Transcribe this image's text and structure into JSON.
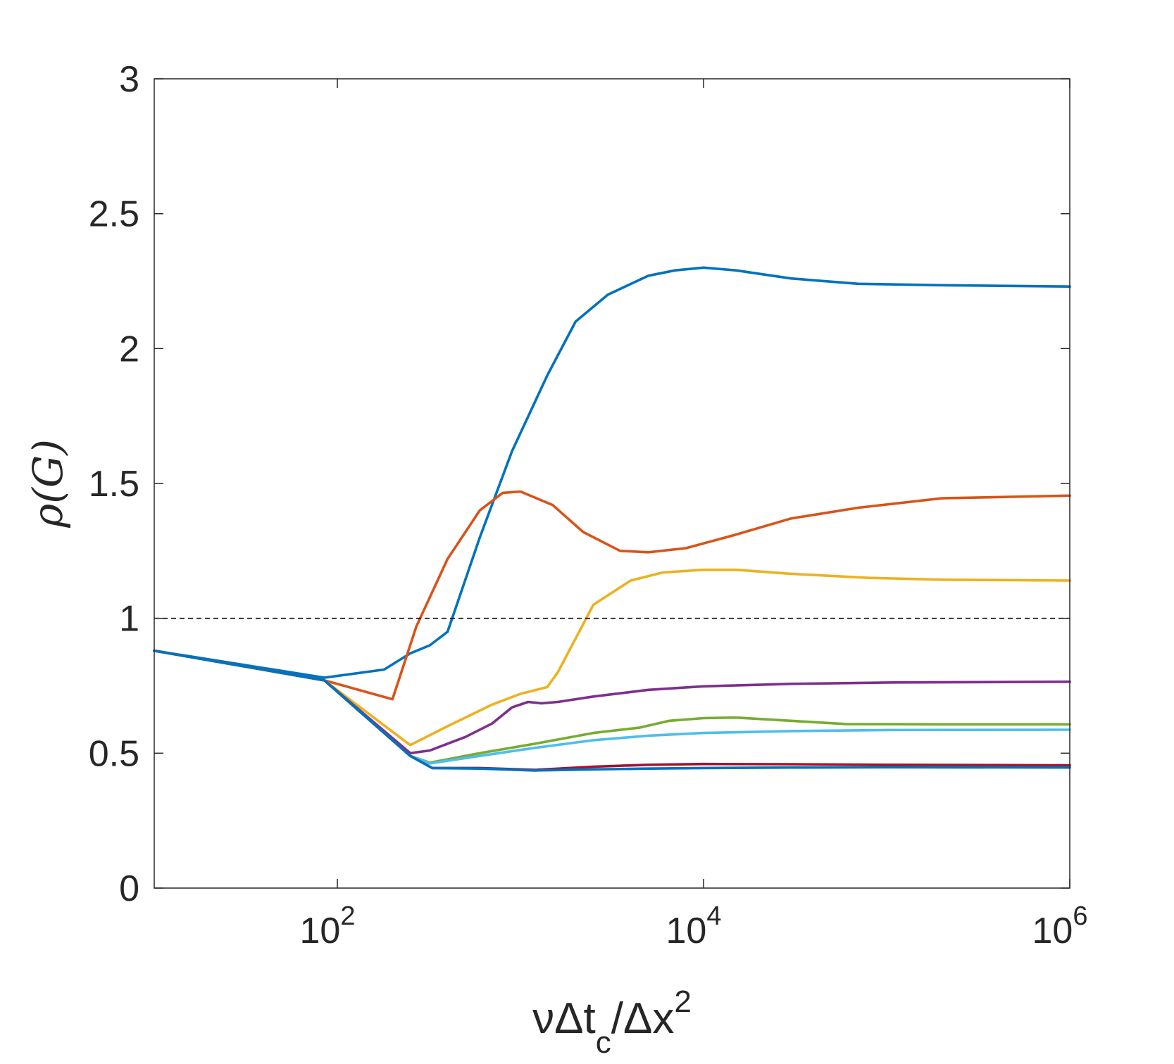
{
  "chart_data": {
    "type": "line",
    "title": "",
    "xlabel": {
      "prefix": "νΔt",
      "sub": "c",
      "mid": "/Δx",
      "sup": "2"
    },
    "ylabel": "ρ(G)",
    "xscale": "log",
    "xlim": [
      10,
      1000000
    ],
    "ylim": [
      0,
      3
    ],
    "grid": false,
    "x_ticks": [
      {
        "value": 100,
        "base": "10",
        "exp": "2"
      },
      {
        "value": 10000,
        "base": "10",
        "exp": "4"
      },
      {
        "value": 1000000,
        "base": "10",
        "exp": "6"
      }
    ],
    "y_ticks": [
      {
        "value": 0,
        "label": "0"
      },
      {
        "value": 0.5,
        "label": "0.5"
      },
      {
        "value": 1,
        "label": "1"
      },
      {
        "value": 1.5,
        "label": "1.5"
      },
      {
        "value": 2,
        "label": "2"
      },
      {
        "value": 2.5,
        "label": "2.5"
      },
      {
        "value": 3,
        "label": "3"
      }
    ],
    "reference_line": {
      "y": 1,
      "style": "dashed",
      "color": "#000000"
    },
    "series": [
      {
        "color": "#0072BD",
        "points": [
          [
            10,
            0.88
          ],
          [
            85,
            0.78
          ],
          [
            180,
            0.81
          ],
          [
            250,
            0.87
          ],
          [
            320,
            0.9
          ],
          [
            400,
            0.95
          ],
          [
            600,
            1.3
          ],
          [
            900,
            1.62
          ],
          [
            1400,
            1.9
          ],
          [
            2000,
            2.1
          ],
          [
            3000,
            2.2
          ],
          [
            5000,
            2.27
          ],
          [
            7000,
            2.29
          ],
          [
            10000,
            2.3
          ],
          [
            15000,
            2.29
          ],
          [
            30000,
            2.26
          ],
          [
            70000,
            2.24
          ],
          [
            200000,
            2.235
          ],
          [
            1000000,
            2.23
          ]
        ]
      },
      {
        "color": "#D95319",
        "points": [
          [
            10,
            0.88
          ],
          [
            85,
            0.77
          ],
          [
            200,
            0.7
          ],
          [
            270,
            0.97
          ],
          [
            400,
            1.22
          ],
          [
            600,
            1.4
          ],
          [
            800,
            1.465
          ],
          [
            1000,
            1.47
          ],
          [
            1500,
            1.42
          ],
          [
            2200,
            1.32
          ],
          [
            3500,
            1.25
          ],
          [
            5000,
            1.245
          ],
          [
            8000,
            1.26
          ],
          [
            15000,
            1.31
          ],
          [
            30000,
            1.37
          ],
          [
            70000,
            1.41
          ],
          [
            200000,
            1.445
          ],
          [
            1000000,
            1.455
          ]
        ]
      },
      {
        "color": "#EDB120",
        "points": [
          [
            10,
            0.88
          ],
          [
            85,
            0.77
          ],
          [
            250,
            0.53
          ],
          [
            400,
            0.6
          ],
          [
            700,
            0.68
          ],
          [
            1000,
            0.72
          ],
          [
            1400,
            0.745
          ],
          [
            1600,
            0.8
          ],
          [
            2500,
            1.05
          ],
          [
            4000,
            1.14
          ],
          [
            6000,
            1.17
          ],
          [
            10000,
            1.18
          ],
          [
            15000,
            1.18
          ],
          [
            30000,
            1.165
          ],
          [
            80000,
            1.15
          ],
          [
            200000,
            1.143
          ],
          [
            1000000,
            1.14
          ]
        ]
      },
      {
        "color": "#7E2F8E",
        "points": [
          [
            10,
            0.88
          ],
          [
            85,
            0.77
          ],
          [
            250,
            0.5
          ],
          [
            320,
            0.51
          ],
          [
            500,
            0.56
          ],
          [
            700,
            0.61
          ],
          [
            900,
            0.67
          ],
          [
            1100,
            0.69
          ],
          [
            1300,
            0.685
          ],
          [
            1600,
            0.69
          ],
          [
            2500,
            0.71
          ],
          [
            5000,
            0.735
          ],
          [
            10000,
            0.748
          ],
          [
            30000,
            0.757
          ],
          [
            100000,
            0.762
          ],
          [
            1000000,
            0.765
          ]
        ]
      },
      {
        "color": "#77AC30",
        "points": [
          [
            10,
            0.88
          ],
          [
            85,
            0.77
          ],
          [
            250,
            0.49
          ],
          [
            320,
            0.465
          ],
          [
            600,
            0.5
          ],
          [
            1200,
            0.535
          ],
          [
            2500,
            0.575
          ],
          [
            4500,
            0.595
          ],
          [
            6500,
            0.62
          ],
          [
            10000,
            0.63
          ],
          [
            15000,
            0.632
          ],
          [
            30000,
            0.62
          ],
          [
            60000,
            0.608
          ],
          [
            200000,
            0.607
          ],
          [
            1000000,
            0.607
          ]
        ]
      },
      {
        "color": "#4DBEEE",
        "points": [
          [
            10,
            0.88
          ],
          [
            85,
            0.77
          ],
          [
            250,
            0.49
          ],
          [
            320,
            0.462
          ],
          [
            600,
            0.49
          ],
          [
            1200,
            0.52
          ],
          [
            2500,
            0.548
          ],
          [
            5000,
            0.565
          ],
          [
            10000,
            0.575
          ],
          [
            30000,
            0.582
          ],
          [
            100000,
            0.586
          ],
          [
            1000000,
            0.587
          ]
        ]
      },
      {
        "color": "#A2142F",
        "points": [
          [
            10,
            0.88
          ],
          [
            85,
            0.77
          ],
          [
            250,
            0.49
          ],
          [
            330,
            0.445
          ],
          [
            600,
            0.445
          ],
          [
            1200,
            0.438
          ],
          [
            2500,
            0.45
          ],
          [
            5000,
            0.457
          ],
          [
            10000,
            0.46
          ],
          [
            30000,
            0.459
          ],
          [
            100000,
            0.457
          ],
          [
            1000000,
            0.455
          ]
        ]
      },
      {
        "color": "#0072BD",
        "points": [
          [
            10,
            0.88
          ],
          [
            85,
            0.77
          ],
          [
            250,
            0.49
          ],
          [
            330,
            0.445
          ],
          [
            600,
            0.443
          ],
          [
            1200,
            0.436
          ],
          [
            2500,
            0.44
          ],
          [
            5000,
            0.443
          ],
          [
            10000,
            0.445
          ],
          [
            30000,
            0.447
          ],
          [
            100000,
            0.448
          ],
          [
            1000000,
            0.447
          ]
        ]
      }
    ]
  }
}
